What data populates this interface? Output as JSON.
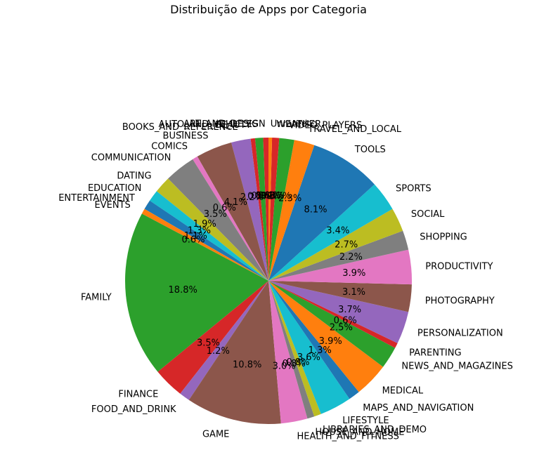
{
  "chart_data": {
    "type": "pie",
    "title": "Distribuição de Apps por Categoria",
    "start_angle_deg": 90,
    "direction": "counterclockwise",
    "slices": [
      {
        "label": "ART_AND_DESIGN",
        "pct": 0.6,
        "pct_label": "0.6%",
        "color": "#d62728"
      },
      {
        "label": "AUTO_AND_VEHICLES",
        "pct": 0.9,
        "pct_label": "0.9%",
        "color": "#2ca02c"
      },
      {
        "label": "BEAUTY",
        "pct": 0.5,
        "pct_label": "0.5%",
        "color": "#d62728"
      },
      {
        "label": "BOOKS_AND_REFERENCE",
        "pct": 2.2,
        "pct_label": "2.2%",
        "color": "#9467bd"
      },
      {
        "label": "BUSINESS",
        "pct": 4.1,
        "pct_label": "4.1%",
        "color": "#8c564b"
      },
      {
        "label": "COMICS",
        "pct": 0.6,
        "pct_label": "0.6%",
        "color": "#e377c2"
      },
      {
        "label": "COMMUNICATION",
        "pct": 3.5,
        "pct_label": "3.5%",
        "color": "#7f7f7f"
      },
      {
        "label": "DATING",
        "pct": 1.9,
        "pct_label": "1.9%",
        "color": "#bcbd22"
      },
      {
        "label": "EDUCATION",
        "pct": 1.3,
        "pct_label": "1.3%",
        "color": "#17becf"
      },
      {
        "label": "ENTERTAINMENT",
        "pct": 1.1,
        "pct_label": "1.1%",
        "color": "#1f77b4"
      },
      {
        "label": "EVENTS",
        "pct": 0.6,
        "pct_label": "0.6%",
        "color": "#ff7f0e"
      },
      {
        "label": "FAMILY",
        "pct": 18.8,
        "pct_label": "18.8%",
        "color": "#2ca02c"
      },
      {
        "label": "FINANCE",
        "pct": 3.5,
        "pct_label": "3.5%",
        "color": "#d62728"
      },
      {
        "label": "FOOD_AND_DRINK",
        "pct": 1.2,
        "pct_label": "1.2%",
        "color": "#9467bd"
      },
      {
        "label": "GAME",
        "pct": 10.8,
        "pct_label": "10.8%",
        "color": "#8c564b"
      },
      {
        "label": "HEALTH_AND_FITNESS",
        "pct": 3.0,
        "pct_label": "3.0%",
        "color": "#e377c2"
      },
      {
        "label": "HOUSE_AND_HOME",
        "pct": 0.8,
        "pct_label": "0.8%",
        "color": "#7f7f7f"
      },
      {
        "label": "LIBRARIES_AND_DEMO",
        "pct": 0.8,
        "pct_label": "0.8%",
        "color": "#bcbd22"
      },
      {
        "label": "LIFESTYLE",
        "pct": 3.6,
        "pct_label": "3.6%",
        "color": "#17becf"
      },
      {
        "label": "MAPS_AND_NAVIGATION",
        "pct": 1.3,
        "pct_label": "1.3%",
        "color": "#1f77b4"
      },
      {
        "label": "MEDICAL",
        "pct": 3.9,
        "pct_label": "3.9%",
        "color": "#ff7f0e"
      },
      {
        "label": "NEWS_AND_MAGAZINES",
        "pct": 2.5,
        "pct_label": "2.5%",
        "color": "#2ca02c"
      },
      {
        "label": "PARENTING",
        "pct": 0.6,
        "pct_label": "0.6%",
        "color": "#d62728"
      },
      {
        "label": "PERSONALIZATION",
        "pct": 3.7,
        "pct_label": "3.7%",
        "color": "#9467bd"
      },
      {
        "label": "PHOTOGRAPHY",
        "pct": 3.1,
        "pct_label": "3.1%",
        "color": "#8c564b"
      },
      {
        "label": "PRODUCTIVITY",
        "pct": 3.9,
        "pct_label": "3.9%",
        "color": "#e377c2"
      },
      {
        "label": "SHOPPING",
        "pct": 2.2,
        "pct_label": "2.2%",
        "color": "#7f7f7f"
      },
      {
        "label": "SOCIAL",
        "pct": 2.7,
        "pct_label": "2.7%",
        "color": "#bcbd22"
      },
      {
        "label": "SPORTS",
        "pct": 3.4,
        "pct_label": "3.4%",
        "color": "#17becf"
      },
      {
        "label": "TOOLS",
        "pct": 8.1,
        "pct_label": "8.1%",
        "color": "#1f77b4"
      },
      {
        "label": "TRAVEL_AND_LOCAL",
        "pct": 2.3,
        "pct_label": "2.3%",
        "color": "#ff7f0e"
      },
      {
        "label": "VIDEO_PLAYERS",
        "pct": 1.7,
        "pct_label": "1.7%",
        "color": "#2ca02c"
      },
      {
        "label": "WEATHER",
        "pct": 0.8,
        "pct_label": "0.8%",
        "color": "#d62728"
      },
      {
        "label": "Unrated",
        "pct": 0.4,
        "pct_label": "0.4%",
        "color": "#ff7f0e"
      }
    ]
  }
}
